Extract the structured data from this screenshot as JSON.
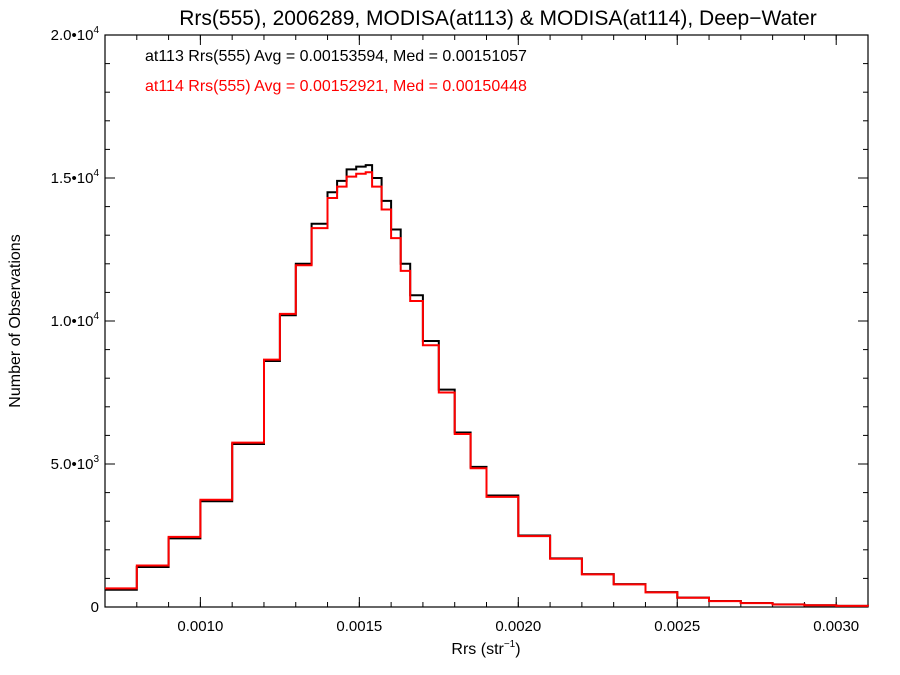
{
  "chart_data": {
    "type": "line",
    "title": "Rrs(555), 2006289, MODISA(at113) & MODISA(at114), Deep−Water",
    "xlabel": "Rrs (str",
    "xlabel_sup": "−1",
    "xlabel_close": ")",
    "ylabel": "Number of Observations",
    "xlim": [
      0.0007,
      0.0031
    ],
    "ylim": [
      0,
      20000
    ],
    "x_ticks": [
      {
        "value": 0.001,
        "label": "0.0010"
      },
      {
        "value": 0.0015,
        "label": "0.0015"
      },
      {
        "value": 0.002,
        "label": "0.0020"
      },
      {
        "value": 0.0025,
        "label": "0.0025"
      },
      {
        "value": 0.003,
        "label": "0.0030"
      }
    ],
    "y_ticks": [
      {
        "value": 0,
        "mant": "0",
        "exp": ""
      },
      {
        "value": 5000,
        "mant": "5.0•10",
        "exp": "3"
      },
      {
        "value": 10000,
        "mant": "1.0•10",
        "exp": "4"
      },
      {
        "value": 15000,
        "mant": "1.5•10",
        "exp": "4"
      },
      {
        "value": 20000,
        "mant": "2.0•10",
        "exp": "4"
      }
    ],
    "grid": false,
    "legend_position": "top-left",
    "series": [
      {
        "name": "at113",
        "color": "#000000",
        "stat_text": "at113 Rrs(555) Avg = 0.00153594, Med = 0.00151057",
        "avg": 0.00153594,
        "median": 0.00151057,
        "x": [
          0.0007,
          0.0008,
          0.0009,
          0.001,
          0.0011,
          0.0012,
          0.00125,
          0.0013,
          0.00135,
          0.0014,
          0.00143,
          0.00146,
          0.00149,
          0.00152,
          0.00154,
          0.00157,
          0.0016,
          0.00163,
          0.00166,
          0.0017,
          0.00175,
          0.0018,
          0.00185,
          0.0019,
          0.002,
          0.0021,
          0.0022,
          0.0023,
          0.0024,
          0.0025,
          0.0026,
          0.0027,
          0.0028,
          0.0029,
          0.003,
          0.0031
        ],
        "y": [
          600,
          1400,
          2400,
          3700,
          5700,
          8600,
          10200,
          12000,
          13400,
          14500,
          14900,
          15300,
          15400,
          15450,
          15000,
          14200,
          13200,
          12000,
          10900,
          9300,
          7600,
          6100,
          4900,
          3900,
          2500,
          1700,
          1150,
          800,
          520,
          330,
          210,
          140,
          90,
          60,
          40,
          25
        ]
      },
      {
        "name": "at114",
        "color": "#ff0000",
        "stat_text": "at114 Rrs(555) Avg = 0.00152921, Med = 0.00150448",
        "avg": 0.00152921,
        "median": 0.00150448,
        "x": [
          0.0007,
          0.0008,
          0.0009,
          0.001,
          0.0011,
          0.0012,
          0.00125,
          0.0013,
          0.00135,
          0.0014,
          0.00143,
          0.00146,
          0.00149,
          0.00152,
          0.00154,
          0.00157,
          0.0016,
          0.00163,
          0.00166,
          0.0017,
          0.00175,
          0.0018,
          0.00185,
          0.0019,
          0.002,
          0.0021,
          0.0022,
          0.0023,
          0.0024,
          0.0025,
          0.0026,
          0.0027,
          0.0028,
          0.0029,
          0.003,
          0.0031
        ],
        "y": [
          650,
          1450,
          2450,
          3750,
          5750,
          8650,
          10250,
          11950,
          13250,
          14300,
          14700,
          15050,
          15150,
          15200,
          14700,
          13900,
          12900,
          11750,
          10700,
          9150,
          7500,
          6050,
          4850,
          3850,
          2480,
          1690,
          1140,
          790,
          510,
          320,
          205,
          135,
          88,
          58,
          38,
          24
        ]
      }
    ]
  }
}
